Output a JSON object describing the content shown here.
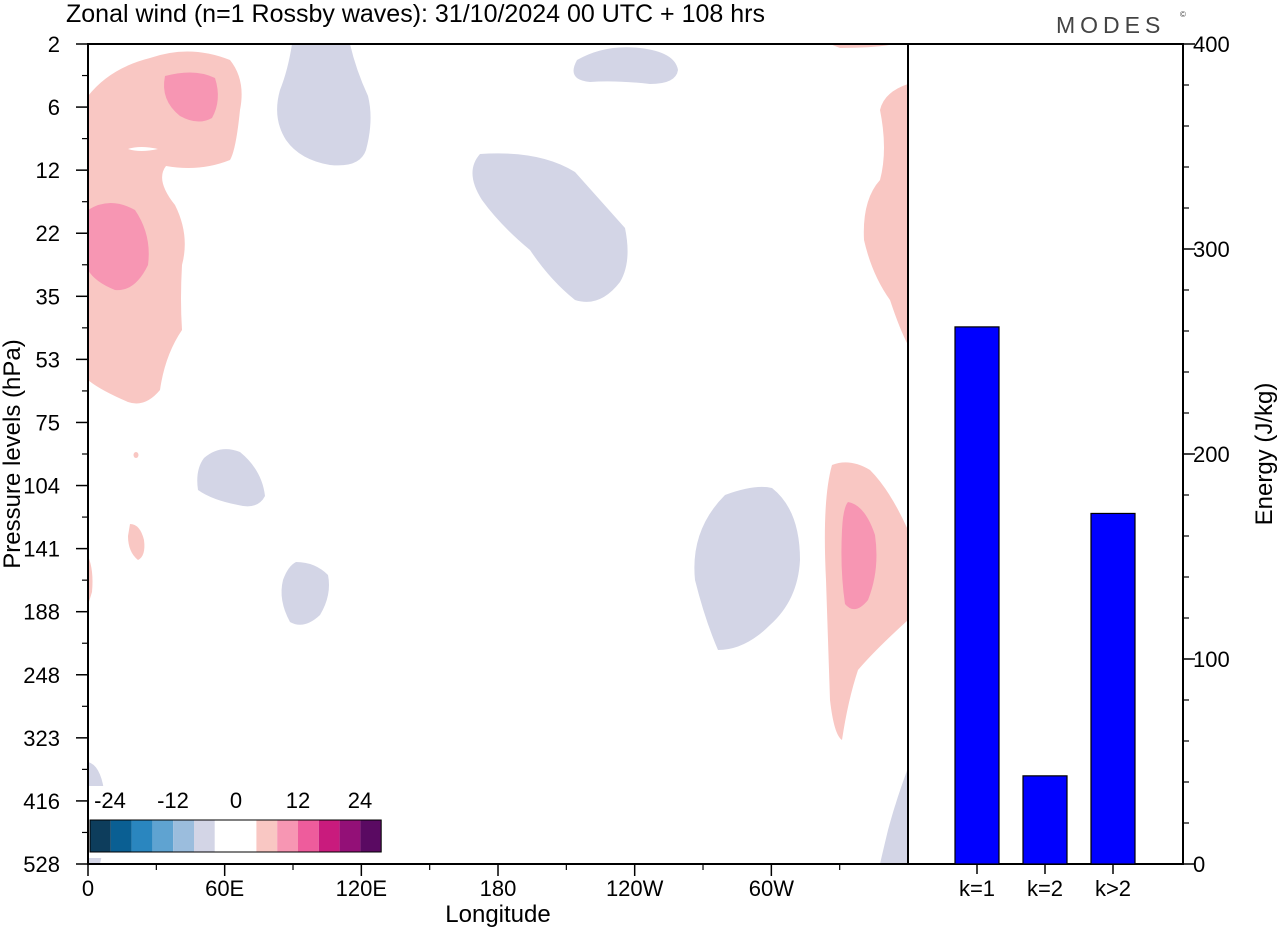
{
  "title": "Zonal wind (n=1 Rossby waves):  31/10/2024  00 UTC  + 108 hrs",
  "logo": {
    "text": "MODES",
    "mark": "©"
  },
  "colors": {
    "negative": [
      "#0d3d5c",
      "#0a5f93",
      "#2a86bf",
      "#5fa3d1",
      "#9bbddd",
      "#d3d5e6"
    ],
    "zero": "#ffffff",
    "positive": [
      "#f9c7c3",
      "#f796b3",
      "#ee5c9c",
      "#c91b7d",
      "#931077",
      "#5a0a62"
    ],
    "bar": "#0000ff"
  },
  "chart_data": [
    {
      "type": "heatmap",
      "xlabel": "Longitude",
      "ylabel": "Pressure levels (hPa)",
      "x_ticks": [
        "0",
        "60E",
        "120E",
        "180",
        "120W",
        "60W"
      ],
      "y_ticks": [
        "2",
        "6",
        "12",
        "22",
        "35",
        "53",
        "75",
        "104",
        "141",
        "188",
        "248",
        "323",
        "416",
        "528"
      ],
      "colorbar": {
        "labels": [
          "-24",
          "-12",
          "0",
          "12",
          "24"
        ]
      },
      "regions": [
        {
          "name": "upper-left positive",
          "sign": "positive",
          "level": 1
        },
        {
          "name": "upper-left core 6hPa",
          "sign": "positive",
          "level": 2
        },
        {
          "name": "upper-left core 22hPa",
          "sign": "positive",
          "level": 2
        },
        {
          "name": "right edge upper positive",
          "sign": "positive",
          "level": 1
        },
        {
          "name": "80W 141hPa positive",
          "sign": "positive",
          "level": 1
        },
        {
          "name": "80W 141hPa core",
          "sign": "positive",
          "level": 2
        },
        {
          "name": "110E negative upper",
          "sign": "negative",
          "level": 1
        },
        {
          "name": "160E-130W negative",
          "sign": "negative",
          "level": 1
        },
        {
          "name": "120W 2hPa negative",
          "sign": "negative",
          "level": 1
        },
        {
          "name": "60E 104hPa negative",
          "sign": "negative",
          "level": 1
        },
        {
          "name": "90E 188hPa negative",
          "sign": "negative",
          "level": 1
        },
        {
          "name": "70W 141hPa negative",
          "sign": "negative",
          "level": 1
        }
      ]
    },
    {
      "type": "bar",
      "ylabel": "Energy (J/kg)",
      "categories": [
        "k=1",
        "k=2",
        "k>2"
      ],
      "values": [
        262,
        43,
        171
      ],
      "ylim": [
        0,
        400
      ],
      "y_ticks": [
        0,
        100,
        200,
        300,
        400
      ]
    }
  ]
}
